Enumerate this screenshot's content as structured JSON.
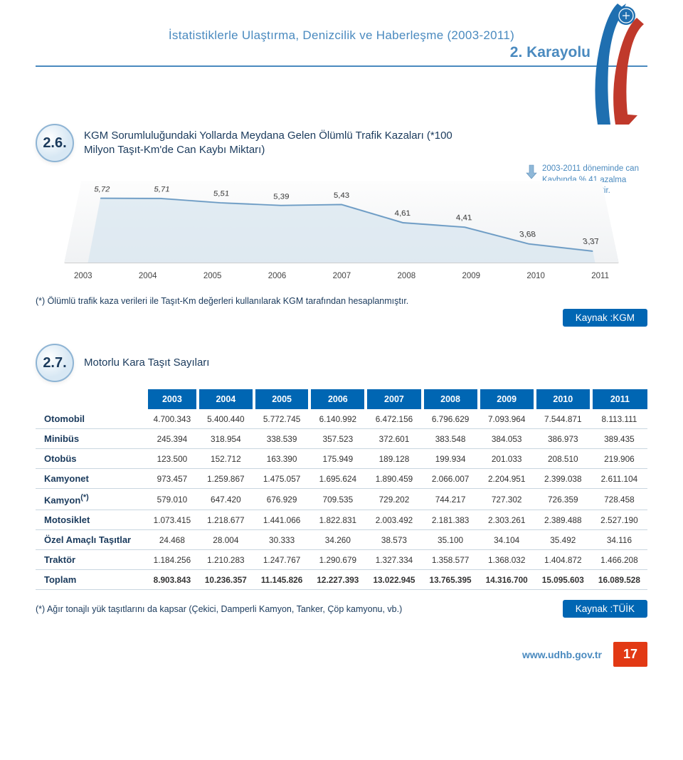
{
  "doc_title": "İstatistiklerle Ulaştırma, Denizcilik ve Haberleşme (2003-2011)",
  "section_label": "2. Karayolu",
  "sec26": {
    "num": "2.6.",
    "title": "KGM Sorumluluğundaki Yollarda Meydana Gelen Ölümlü Trafik Kazaları (*100 Milyon Taşıt-Km'de Can Kaybı Miktarı)"
  },
  "chart": {
    "years": [
      "2003",
      "2004",
      "2005",
      "2006",
      "2007",
      "2008",
      "2009",
      "2010",
      "2011"
    ],
    "values": [
      5.72,
      5.71,
      5.51,
      5.39,
      5.43,
      4.61,
      4.41,
      3.68,
      3.37
    ],
    "labels": [
      "5,72",
      "5,71",
      "5,51",
      "5,39",
      "5,43",
      "4,61",
      "4,41",
      "3,68",
      "3,37"
    ],
    "ymin": 3.0,
    "ymax": 6.2,
    "line_color": "#6c9bc4",
    "fill_color": "#d7e5f0",
    "bg_top": "#fdfdfd",
    "bg_bottom": "#f0f2f4"
  },
  "note_text": "2003-2011 döneminde can Kaybında % 41 azalma meydana gelmiştir.",
  "chart_footnote": "(*) Ölümlü trafik kaza verileri ile Taşıt-Km değerleri kullanılarak KGM tarafından hesaplanmıştır.",
  "kaynak_kgm": "Kaynak :KGM",
  "sec27": {
    "num": "2.7.",
    "title": "Motorlu Kara Taşıt Sayıları"
  },
  "table": {
    "columns": [
      "",
      "2003",
      "2004",
      "2005",
      "2006",
      "2007",
      "2008",
      "2009",
      "2010",
      "2011"
    ],
    "rows": [
      [
        "Otomobil",
        "4.700.343",
        "5.400.440",
        "5.772.745",
        "6.140.992",
        "6.472.156",
        "6.796.629",
        "7.093.964",
        "7.544.871",
        "8.113.111"
      ],
      [
        "Minibüs",
        "245.394",
        "318.954",
        "338.539",
        "357.523",
        "372.601",
        "383.548",
        "384.053",
        "386.973",
        "389.435"
      ],
      [
        "Otobüs",
        "123.500",
        "152.712",
        "163.390",
        "175.949",
        "189.128",
        "199.934",
        "201.033",
        "208.510",
        "219.906"
      ],
      [
        "Kamyonet",
        "973.457",
        "1.259.867",
        "1.475.057",
        "1.695.624",
        "1.890.459",
        "2.066.007",
        "2.204.951",
        "2.399.038",
        "2.611.104"
      ],
      [
        "Kamyon(*)",
        "579.010",
        "647.420",
        "676.929",
        "709.535",
        "729.202",
        "744.217",
        "727.302",
        "726.359",
        "728.458"
      ],
      [
        "Motosiklet",
        "1.073.415",
        "1.218.677",
        "1.441.066",
        "1.822.831",
        "2.003.492",
        "2.181.383",
        "2.303.261",
        "2.389.488",
        "2.527.190"
      ],
      [
        "Özel Amaçlı Taşıtlar",
        "24.468",
        "28.004",
        "30.333",
        "34.260",
        "38.573",
        "35.100",
        "34.104",
        "35.492",
        "34.116"
      ],
      [
        "Traktör",
        "1.184.256",
        "1.210.283",
        "1.247.767",
        "1.290.679",
        "1.327.334",
        "1.358.577",
        "1.368.032",
        "1.404.872",
        "1.466.208"
      ],
      [
        "Toplam",
        "8.903.843",
        "10.236.357",
        "11.145.826",
        "12.227.393",
        "13.022.945",
        "13.765.395",
        "14.316.700",
        "15.095.603",
        "16.089.528"
      ]
    ]
  },
  "table_footnote": "(*) Ağır tonajlı yük taşıtlarını da kapsar (Çekici, Damperli Kamyon, Tanker, Çöp kamyonu, vb.)",
  "kaynak_tuik": "Kaynak :TÜİK",
  "site_url": "www.udhb.gov.tr",
  "page_num": "17",
  "colors": {
    "header_blue": "#4a8abf",
    "dark_blue": "#1a3a5c",
    "tag_blue": "#0066b3",
    "page_red": "#e23914"
  }
}
